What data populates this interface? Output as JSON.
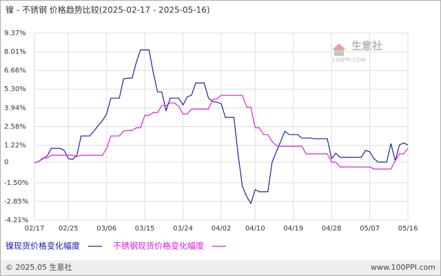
{
  "chart_data": {
    "type": "line",
    "title": "镍 - 不锈钢 价格趋势比较(2025-02-17 - 2025-05-16)",
    "watermark": {
      "name": "生意社",
      "site": "100PPI.COM"
    },
    "footer": {
      "left": "© 2025.05 生意社",
      "right": "www.100PPI.com"
    },
    "categories": [
      "02/17",
      null,
      null,
      null,
      null,
      null,
      null,
      null,
      "02/25",
      null,
      null,
      null,
      null,
      null,
      null,
      null,
      null,
      "03/06",
      null,
      null,
      null,
      null,
      null,
      null,
      null,
      null,
      "03/15",
      null,
      null,
      null,
      null,
      null,
      null,
      null,
      null,
      "03/24",
      null,
      null,
      null,
      null,
      null,
      null,
      null,
      null,
      "04/02",
      null,
      null,
      null,
      null,
      null,
      null,
      null,
      "04/10",
      null,
      null,
      null,
      null,
      null,
      null,
      null,
      null,
      "04/19",
      null,
      null,
      null,
      null,
      null,
      null,
      null,
      null,
      "04/28",
      null,
      null,
      null,
      null,
      null,
      null,
      null,
      null,
      "05/07",
      null,
      null,
      null,
      null,
      null,
      null,
      null,
      null,
      "05/16"
    ],
    "series": [
      {
        "name": "镍现货价格变化幅度",
        "color": "#1a1aa6",
        "values": [
          -0.05,
          0.05,
          0.25,
          0.45,
          1.0,
          1.0,
          1.0,
          0.85,
          0.25,
          0.2,
          0.5,
          1.9,
          1.9,
          1.9,
          2.25,
          2.65,
          3.0,
          3.5,
          4.65,
          4.65,
          4.65,
          6.05,
          6.1,
          6.1,
          7.25,
          8.15,
          8.15,
          8.15,
          6.5,
          5.1,
          5.1,
          3.75,
          4.65,
          4.65,
          4.65,
          4.15,
          4.75,
          4.85,
          5.75,
          5.75,
          5.75,
          4.65,
          4.4,
          4.35,
          4.25,
          3.25,
          3.25,
          3.25,
          0.5,
          -1.75,
          -2.5,
          -3.0,
          -2.0,
          -2.15,
          -2.15,
          -2.15,
          0,
          0.75,
          1.5,
          2.25,
          2.0,
          2.0,
          2.0,
          1.75,
          1.75,
          1.75,
          1.7,
          1.7,
          1.7,
          1.7,
          0.25,
          0.65,
          0.35,
          0.35,
          0.35,
          0.35,
          0.35,
          0.35,
          0.85,
          0.75,
          0.25,
          0,
          0,
          0,
          1.35,
          0.1,
          1.25,
          1.4,
          1.25
        ]
      },
      {
        "name": "不锈钢现货价格变化幅度",
        "color": "#d81ed8",
        "values": [
          -0.05,
          0.05,
          0.3,
          0.3,
          0.5,
          0.5,
          0.5,
          0.5,
          0.5,
          0.5,
          0.4,
          0.5,
          0.5,
          0.5,
          0.5,
          0.5,
          0.5,
          1.0,
          1.9,
          1.9,
          1.9,
          2.25,
          2.3,
          2.3,
          2.5,
          2.5,
          3.4,
          3.4,
          3.6,
          3.6,
          4.1,
          4.1,
          4.3,
          4.3,
          4.05,
          3.5,
          3.5,
          3.85,
          3.85,
          3.85,
          3.85,
          3.85,
          4.55,
          4.6,
          4.85,
          4.85,
          4.85,
          4.85,
          4.85,
          4.85,
          4.0,
          4.0,
          2.5,
          2.5,
          2.0,
          2.0,
          1.5,
          1.2,
          1.15,
          1.15,
          1.15,
          1.15,
          1.15,
          1.15,
          0.6,
          0.6,
          0.6,
          0.6,
          0.6,
          0.6,
          0,
          0,
          -0.35,
          -0.35,
          -0.35,
          -0.35,
          -0.35,
          -0.35,
          -0.35,
          -0.35,
          -0.5,
          -0.5,
          -0.5,
          -0.5,
          -0.5,
          0.1,
          0.6,
          0.6,
          1.0
        ]
      }
    ],
    "ylim": [
      -4.21,
      9.37
    ],
    "yticks": [
      {
        "value": -4.21,
        "label": "-4.21%"
      },
      {
        "value": -2.85,
        "label": "-2.85%"
      },
      {
        "value": -1.5,
        "label": "-1.50%"
      },
      0,
      {
        "value": 1.22,
        "label": "1.22%"
      },
      {
        "value": 2.58,
        "label": "2.58%"
      },
      {
        "value": 3.94,
        "label": "3.94%"
      },
      {
        "value": 5.3,
        "label": "5.30%"
      },
      {
        "value": 6.66,
        "label": "6.66%"
      },
      {
        "value": 8.01,
        "label": "8.01%"
      },
      {
        "value": 9.37,
        "label": "9.37%"
      }
    ],
    "grid": true
  }
}
